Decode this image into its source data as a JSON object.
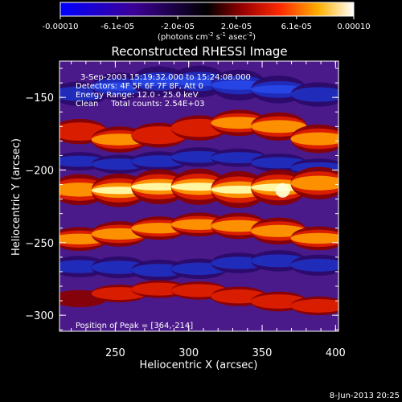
{
  "chart_data": {
    "type": "heatmap",
    "title": "Reconstructed RHESSI Image",
    "xlabel": "Heliocentric X (arcsec)",
    "ylabel": "Heliocentric Y (arcsec)",
    "xlim": [
      212,
      402
    ],
    "ylim": [
      -311,
      -125
    ],
    "x_ticks": [
      250,
      300,
      350,
      400
    ],
    "y_ticks": [
      -150,
      -200,
      -250,
      -300
    ],
    "colorbar": {
      "ticks": [
        "-0.00010",
        "-6.1e-05",
        "-2.0e-05",
        "2.0e-05",
        "6.1e-05",
        "0.00010"
      ],
      "tick_values": [
        -0.0001,
        -6.1e-05,
        -2e-05,
        2e-05,
        6.1e-05,
        0.0001
      ],
      "range": [
        -0.0001,
        0.0001
      ],
      "unit_label_parts": {
        "pre": "(photons cm",
        "exp1": "-2",
        "mid": " s",
        "exp2": "-1",
        "mid2": " asec",
        "exp3": "-2",
        "post": ")"
      }
    },
    "annotations": [
      "3-Sep-2003 15:19:32.000 to 15:24:08.000",
      "Detectors: 4F 5F 6F 7F 8F, Att 0",
      "Energy Range: 12.0 - 25.0 keV",
      "Clean     Total counts: 2.54E+03"
    ],
    "peak_label": "Position of Peak = [364,-214]",
    "peak": [
      364,
      -214
    ],
    "ribbons": [
      {
        "centers_y": [
          -169,
          -178,
          -180,
          -172,
          -170,
          -165,
          -175,
          -182
        ],
        "intensity": [
          0.35,
          0.55,
          0.45,
          0.4,
          0.5,
          0.55,
          0.7,
          0.6
        ],
        "width": 10
      },
      {
        "centers_y": [
          -212,
          -215,
          -213,
          -210,
          -213,
          -214,
          -210,
          -208
        ],
        "intensity": [
          0.55,
          0.7,
          0.8,
          0.85,
          0.95,
          0.9,
          0.85,
          0.55
        ],
        "width": 11
      },
      {
        "centers_y": [
          -249,
          -246,
          -242,
          -238,
          -237,
          -240,
          -244,
          -250
        ],
        "intensity": [
          0.35,
          0.7,
          0.55,
          0.45,
          0.6,
          0.75,
          0.7,
          0.35
        ],
        "width": 9
      },
      {
        "centers_y": [
          -290,
          -287,
          -283,
          -281,
          -285,
          -289,
          -292,
          -295
        ],
        "intensity": [
          0.2,
          0.25,
          0.3,
          0.25,
          0.35,
          0.45,
          0.4,
          0.3
        ],
        "width": 8
      }
    ],
    "troughs": [
      {
        "centers_y": [
          -150,
          -145,
          -140,
          -138,
          -140,
          -143,
          -146,
          -150
        ],
        "intensity": [
          0.3,
          0.5,
          0.7,
          0.8,
          0.85,
          0.7,
          0.5,
          0.3
        ],
        "width": 10
      },
      {
        "centers_y": [
          -192,
          -196,
          -196,
          -192,
          -190,
          -193,
          -197,
          -200
        ],
        "intensity": [
          0.35,
          0.3,
          0.4,
          0.45,
          0.35,
          0.3,
          0.35,
          0.3
        ],
        "width": 8
      },
      {
        "centers_y": [
          -267,
          -266,
          -268,
          -270,
          -266,
          -262,
          -263,
          -268
        ],
        "intensity": [
          0.5,
          0.6,
          0.55,
          0.5,
          0.45,
          0.5,
          0.55,
          0.5
        ],
        "width": 8
      }
    ]
  },
  "footer_timestamp": "8-Jun-2013 20:25"
}
